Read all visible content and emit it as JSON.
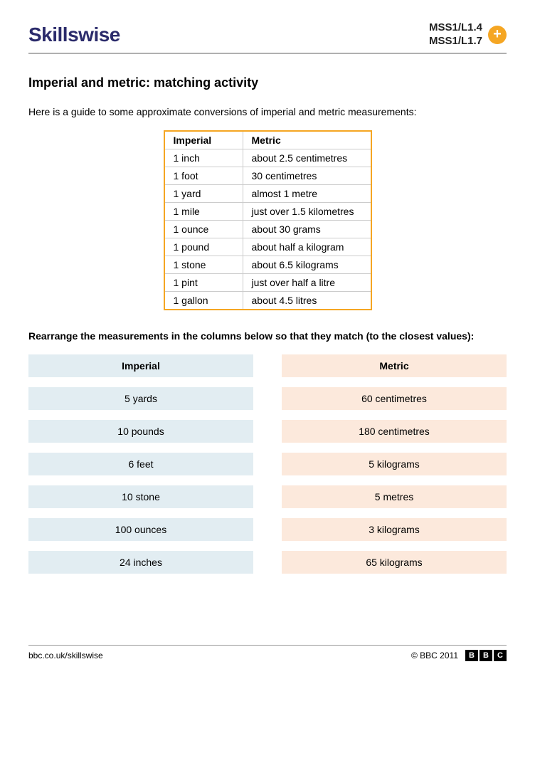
{
  "header": {
    "logo_text": "Skillswise",
    "code1": "MSS1/L1.4",
    "code2": "MSS1/L1.7"
  },
  "title": "Imperial and metric: matching activity",
  "intro": "Here is a guide to some approximate conversions of imperial and metric measurements:",
  "conv_table": {
    "col1": "Imperial",
    "col2": "Metric",
    "rows": [
      {
        "imp": "1 inch",
        "met": "about 2.5 centimetres"
      },
      {
        "imp": "1 foot",
        "met": "30 centimetres"
      },
      {
        "imp": "1 yard",
        "met": "almost 1 metre"
      },
      {
        "imp": "1 mile",
        "met": "just over 1.5 kilometres"
      },
      {
        "imp": "1 ounce",
        "met": "about 30 grams"
      },
      {
        "imp": "1 pound",
        "met": "about half a kilogram"
      },
      {
        "imp": "1 stone",
        "met": "about 6.5 kilograms"
      },
      {
        "imp": "1 pint",
        "met": "just over half a litre"
      },
      {
        "imp": "1 gallon",
        "met": "about 4.5 litres"
      }
    ]
  },
  "instruction": "Rearrange the measurements in the columns below so that they match (to the closest values):",
  "match": {
    "imperial_header": "Imperial",
    "metric_header": "Metric",
    "imperial": [
      "5 yards",
      "10 pounds",
      "6 feet",
      "10 stone",
      "100 ounces",
      "24 inches"
    ],
    "metric": [
      "60 centimetres",
      "180 centimetres",
      "5 kilograms",
      "5 metres",
      "3 kilograms",
      "65 kilograms"
    ],
    "colors": {
      "imperial_bg": "#e2edf2",
      "metric_bg": "#fce9dc"
    }
  },
  "footer": {
    "url": "bbc.co.uk/skillswise",
    "copyright": "© BBC 2011",
    "bbc": [
      "B",
      "B",
      "C"
    ]
  }
}
